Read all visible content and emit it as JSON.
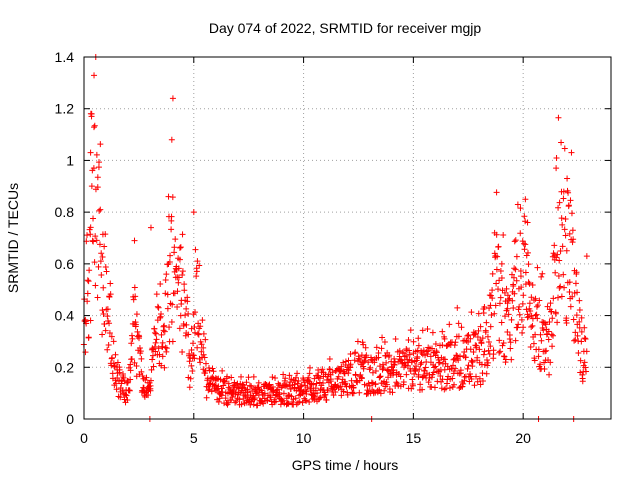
{
  "chart_data": {
    "type": "scatter",
    "title": "Day 074 of 2022, SRMTID for receiver mgjp",
    "xlabel": "GPS time / hours",
    "ylabel": "SRMTID / TECUs",
    "xlim": [
      0,
      24
    ],
    "ylim": [
      0,
      1.4
    ],
    "x_ticks": [
      0,
      5,
      10,
      15,
      20
    ],
    "x_tick_labels": [
      "0",
      "5",
      "10",
      "15",
      "20"
    ],
    "y_ticks": [
      0,
      0.2,
      0.4,
      0.6,
      0.8,
      1.0,
      1.2,
      1.4
    ],
    "y_tick_labels": [
      "0",
      "0.2",
      "0.4",
      "0.6",
      "0.8",
      "1",
      "1.2",
      "1.4"
    ],
    "grid": true,
    "marker": "+",
    "series": [
      {
        "name": "SRMTID",
        "color": "#ff0000",
        "approximate_profile": [
          {
            "x": 0.0,
            "y": 0.38
          },
          {
            "x": 0.3,
            "y": 0.65
          },
          {
            "x": 0.5,
            "y": 0.9
          },
          {
            "x": 0.8,
            "y": 0.55
          },
          {
            "x": 1.2,
            "y": 0.35
          },
          {
            "x": 1.5,
            "y": 0.15
          },
          {
            "x": 2.0,
            "y": 0.1
          },
          {
            "x": 2.3,
            "y": 0.35
          },
          {
            "x": 2.7,
            "y": 0.12
          },
          {
            "x": 3.0,
            "y": 0.1
          },
          {
            "x": 3.3,
            "y": 0.4
          },
          {
            "x": 3.6,
            "y": 0.3
          },
          {
            "x": 4.0,
            "y": 0.55
          },
          {
            "x": 4.5,
            "y": 0.4
          },
          {
            "x": 4.8,
            "y": 0.2
          },
          {
            "x": 5.2,
            "y": 0.45
          },
          {
            "x": 5.6,
            "y": 0.12
          },
          {
            "x": 6.5,
            "y": 0.1
          },
          {
            "x": 8.0,
            "y": 0.09
          },
          {
            "x": 9.5,
            "y": 0.1
          },
          {
            "x": 11.0,
            "y": 0.13
          },
          {
            "x": 12.5,
            "y": 0.17
          },
          {
            "x": 14.0,
            "y": 0.18
          },
          {
            "x": 15.5,
            "y": 0.2
          },
          {
            "x": 17.0,
            "y": 0.21
          },
          {
            "x": 18.3,
            "y": 0.25
          },
          {
            "x": 18.8,
            "y": 0.5
          },
          {
            "x": 19.3,
            "y": 0.33
          },
          {
            "x": 19.9,
            "y": 0.55
          },
          {
            "x": 20.5,
            "y": 0.35
          },
          {
            "x": 21.2,
            "y": 0.3
          },
          {
            "x": 21.6,
            "y": 0.65
          },
          {
            "x": 22.1,
            "y": 0.62
          },
          {
            "x": 22.6,
            "y": 0.3
          },
          {
            "x": 22.9,
            "y": 0.2
          }
        ],
        "spikes": [
          {
            "x": 0.35,
            "y": 1.18
          },
          {
            "x": 0.3,
            "y": 1.03
          },
          {
            "x": 0.45,
            "y": 0.97
          },
          {
            "x": 4.05,
            "y": 1.24
          },
          {
            "x": 4.0,
            "y": 1.08
          },
          {
            "x": 3.85,
            "y": 0.86
          },
          {
            "x": 5.0,
            "y": 0.8
          },
          {
            "x": 2.3,
            "y": 0.69
          },
          {
            "x": 3.05,
            "y": 0.74
          },
          {
            "x": 18.7,
            "y": 0.72
          },
          {
            "x": 20.1,
            "y": 0.85
          },
          {
            "x": 20.2,
            "y": 0.76
          },
          {
            "x": 21.5,
            "y": 0.97
          },
          {
            "x": 22.0,
            "y": 0.93
          },
          {
            "x": 22.2,
            "y": 1.03
          },
          {
            "x": 22.9,
            "y": 0.63
          },
          {
            "x": 17.0,
            "y": 0.43
          }
        ],
        "zero_points_x": [
          3.0,
          13.1,
          20.7,
          22.3
        ]
      }
    ]
  }
}
